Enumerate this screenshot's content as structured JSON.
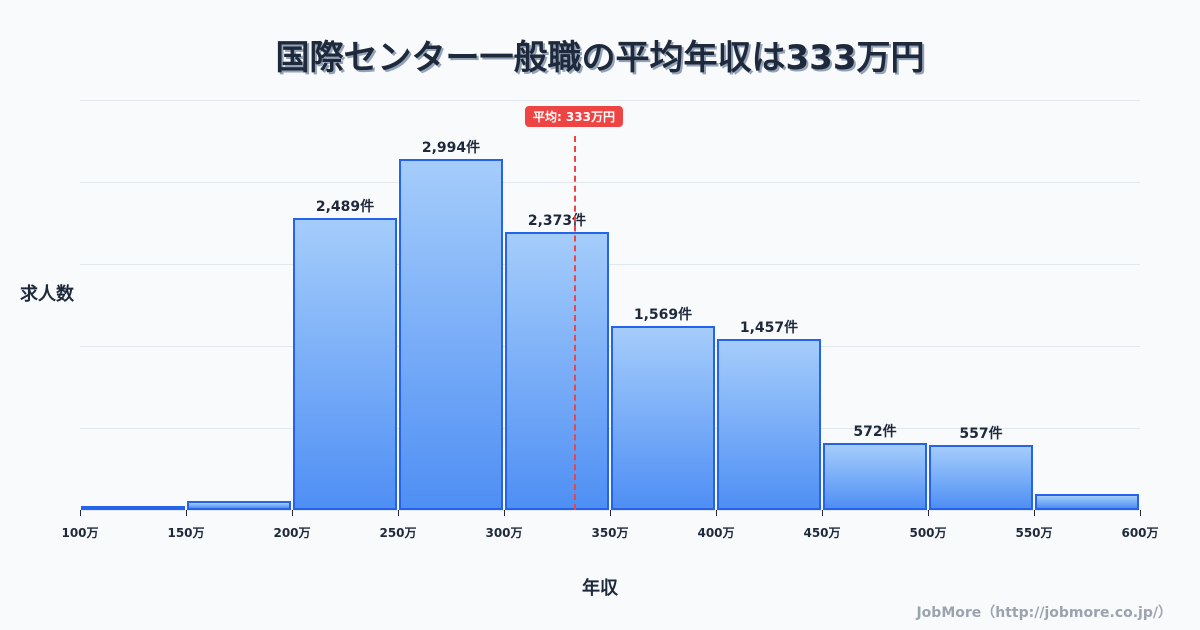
{
  "title": "国際センター一般職の平均年収は333万円",
  "ylabel": "求人数",
  "xlabel": "年収",
  "footer": "JobMore（http://jobmore.co.jp/）",
  "average": {
    "label": "平均: 333万円",
    "value": 333,
    "color": "#ef4444"
  },
  "colors": {
    "bar_border": "#2563eb",
    "bar_top": "#a5cdfb",
    "bar_bottom": "#4f8ff4",
    "text": "#1e293b",
    "grid": "#e2e8f0"
  },
  "chart_data": {
    "type": "bar",
    "title": "国際センター一般職の平均年収は333万円",
    "xlabel": "年収",
    "ylabel": "求人数",
    "x_ticks": [
      "100万",
      "150万",
      "200万",
      "250万",
      "300万",
      "350万",
      "400万",
      "450万",
      "500万",
      "550万",
      "600万"
    ],
    "categories": [
      "100-150万",
      "150-200万",
      "200-250万",
      "250-300万",
      "300-350万",
      "350-400万",
      "400-450万",
      "450-500万",
      "500-550万",
      "550-600万"
    ],
    "values": [
      10,
      80,
      2489,
      2994,
      2373,
      1569,
      1457,
      572,
      557,
      140
    ],
    "value_labels": [
      "",
      "",
      "2,489件",
      "2,994件",
      "2,373件",
      "1,569件",
      "1,457件",
      "572件",
      "557件",
      ""
    ],
    "ylim": [
      0,
      3500
    ],
    "grid": true,
    "annotations": [
      {
        "type": "vline",
        "x": 333,
        "label": "平均: 333万円"
      }
    ]
  }
}
